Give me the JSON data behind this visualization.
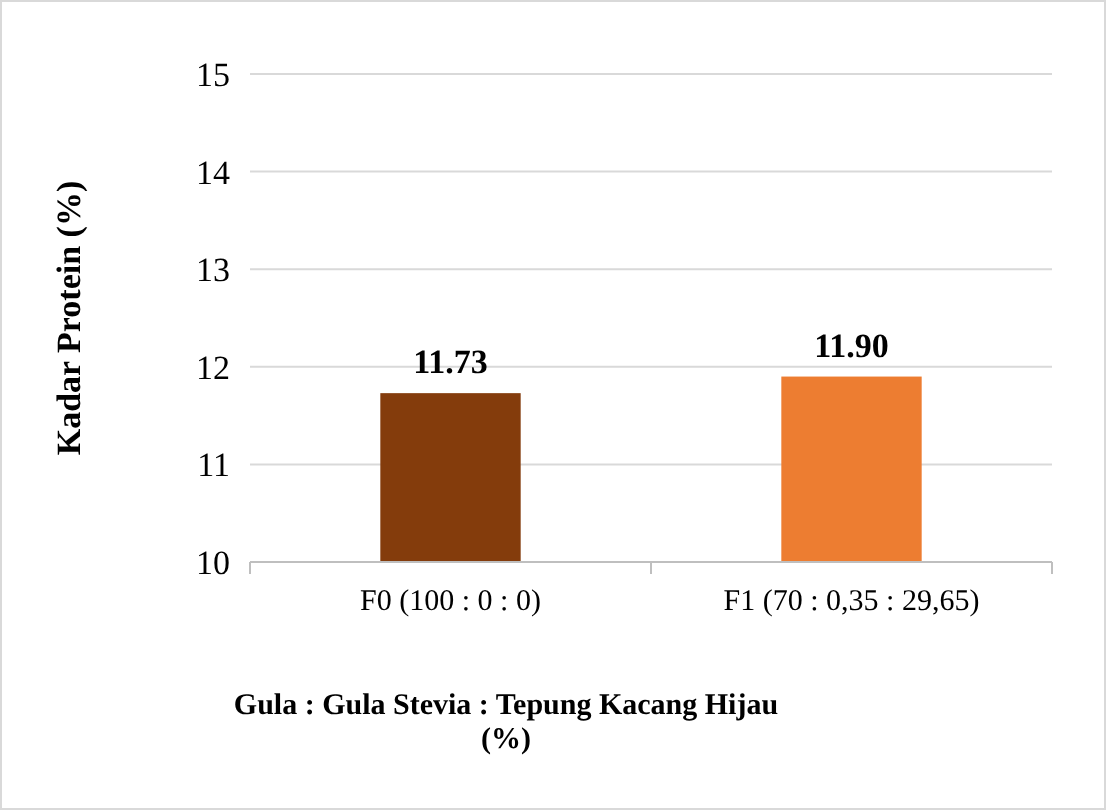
{
  "chart_data": {
    "type": "bar",
    "ylabel": "Kadar Protein (%)",
    "xlabel": "Gula : Gula Stevia : Tepung Kacang Hijau (%)",
    "categories": [
      "F0 (100 : 0 : 0)",
      "F1 (70 : 0,35 : 29,65)"
    ],
    "values": [
      11.73,
      11.9
    ],
    "colors": [
      "#843c0c",
      "#ed7d31"
    ],
    "value_labels": [
      "11.73",
      "11.90"
    ],
    "ylim": [
      10,
      15
    ],
    "yticks": [
      10,
      11,
      12,
      13,
      14,
      15
    ],
    "grid": "y"
  }
}
